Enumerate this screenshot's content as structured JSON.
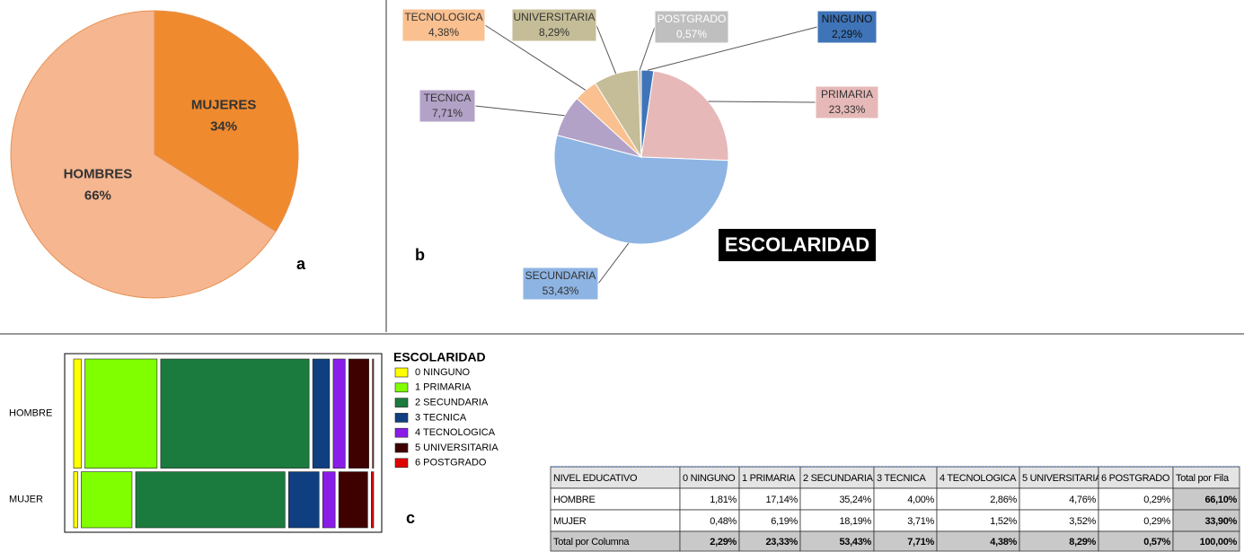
{
  "chart_data": [
    {
      "type": "pie",
      "panel": "a",
      "categories": [
        "MUJERES",
        "HOMBRES"
      ],
      "values": [
        34,
        66
      ],
      "value_labels": [
        "34%",
        "66%"
      ],
      "colors": [
        "#ef8a2e",
        "#f6b690"
      ]
    },
    {
      "type": "pie",
      "panel": "b",
      "title": "ESCOLARIDAD",
      "categories": [
        "NINGUNO",
        "PRIMARIA",
        "SECUNDARIA",
        "TECNICA",
        "TECNOLOGICA",
        "UNIVERSITARIA",
        "POSTGRADO"
      ],
      "values": [
        2.29,
        23.33,
        53.43,
        7.71,
        4.38,
        8.29,
        0.57
      ],
      "value_labels": [
        "2,29%",
        "23,33%",
        "53,43%",
        "7,71%",
        "4,38%",
        "8,29%",
        "0,57%"
      ],
      "colors": [
        "#3f74b8",
        "#e6b9b8",
        "#8eb4e3",
        "#b3a2c7",
        "#fac090",
        "#c4bd97",
        "#bfbfbf"
      ]
    },
    {
      "type": "mosaic",
      "panel": "c",
      "legend_title": "ESCOLARIDAD",
      "categories": [
        "0 NINGUNO",
        "1 PRIMARIA",
        "2 SECUNDARIA",
        "3 TECNICA",
        "4 TECNOLOGICA",
        "5 UNIVERSITARIA",
        "6 POSTGRADO"
      ],
      "colors": [
        "#ffff00",
        "#80ff00",
        "#1b7a3e",
        "#0f3f80",
        "#8a1ce8",
        "#3f0000",
        "#e00000"
      ],
      "series": [
        {
          "name": "HOMBRE",
          "values": [
            1.81,
            17.14,
            35.24,
            4.0,
            2.86,
            4.76,
            0.29
          ]
        },
        {
          "name": "MUJER",
          "values": [
            0.48,
            6.19,
            18.19,
            3.71,
            1.52,
            3.52,
            0.29
          ]
        }
      ]
    }
  ],
  "table": {
    "header": [
      "NIVEL EDUCATIVO",
      "0 NINGUNO",
      "1 PRIMARIA",
      "2 SECUNDARIA",
      "3 TECNICA",
      "4 TECNOLOGICA",
      "5 UNIVERSITARIA",
      "6 POSTGRADO",
      "Total por Fila"
    ],
    "rows": [
      [
        "HOMBRE",
        "1,81%",
        "17,14%",
        "35,24%",
        "4,00%",
        "2,86%",
        "4,76%",
        "0,29%",
        "66,10%"
      ],
      [
        "MUJER",
        "0,48%",
        "6,19%",
        "18,19%",
        "3,71%",
        "1,52%",
        "3,52%",
        "0,29%",
        "33,90%"
      ],
      [
        "Total por Columna",
        "2,29%",
        "23,33%",
        "53,43%",
        "7,71%",
        "4,38%",
        "8,29%",
        "0,57%",
        "100,00%"
      ]
    ]
  }
}
